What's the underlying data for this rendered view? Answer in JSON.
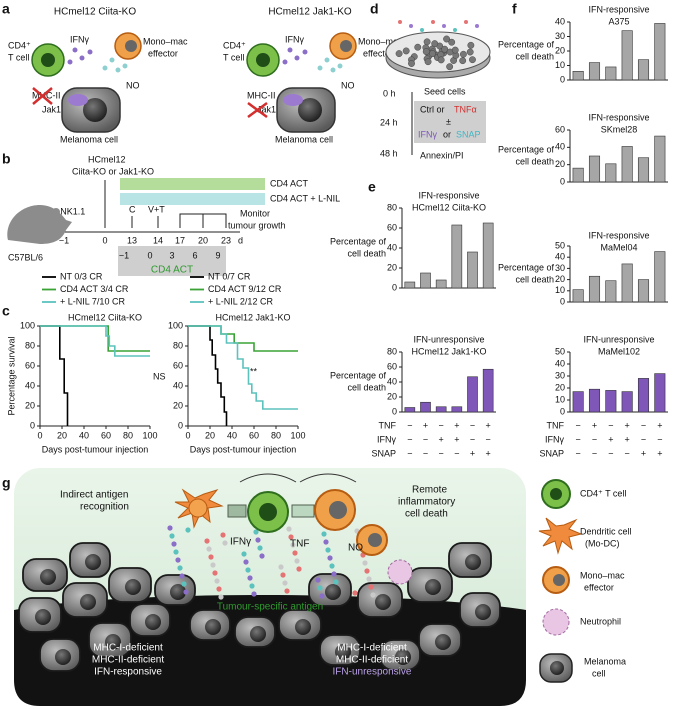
{
  "panel_labels": [
    "a",
    "b",
    "c",
    "d",
    "e",
    "f",
    "g"
  ],
  "panel_a": {
    "left_title": "HCmel12 Ciita-KO",
    "right_title": "HCmel12 Jak1-KO",
    "t_cell": [
      "CD4⁺",
      "T cell"
    ],
    "ifng": "IFNγ",
    "effector": [
      "Mono–mac",
      "effector"
    ],
    "no": "NO",
    "mhc": "MHC-II",
    "jak1": "Jak1",
    "melanoma": "Melanoma cell"
  },
  "panel_b": {
    "line": "HCmel12",
    "cell_lines": "Ciita-KO or Jak1-KO",
    "depletion": "α-NK1.1",
    "mouse": "C57BL/6",
    "c": "C",
    "vt": "V+T",
    "arm1": "CD4 ACT",
    "arm2": "CD4 ACT + L-NIL",
    "monitor": [
      "Monitor",
      "tumour growth"
    ],
    "days": [
      "−1",
      0,
      13,
      14,
      17,
      20,
      23
    ],
    "day_unit": "d",
    "act_days": [
      "−1",
      0,
      3,
      6,
      9
    ],
    "act_label": "CD4 ACT"
  },
  "panel_d": {
    "seed": "Seed cells",
    "ctrl": "Ctrl or",
    "tnf": "TNFα",
    "pm": "±",
    "ifng": "IFNγ",
    "or": "or",
    "snap": "SNAP",
    "readout": "Annexin/PI",
    "times": [
      "0 h",
      "24 h",
      "48 h"
    ]
  },
  "conditions": [
    {
      "name": "TNF",
      "signs": [
        "−",
        "+",
        "−",
        "+",
        "−",
        "+"
      ]
    },
    {
      "name": "IFNγ",
      "signs": [
        "−",
        "−",
        "+",
        "+",
        "−",
        "−"
      ]
    },
    {
      "name": "SNAP",
      "signs": [
        "−",
        "−",
        "−",
        "−",
        "+",
        "+"
      ]
    }
  ],
  "chart_data": [
    {
      "type": "bar",
      "title": [
        "IFN-responsive",
        "HCmel12 Ciita-KO"
      ],
      "ylabel": [
        "Percentage of",
        "cell death"
      ],
      "values": [
        6,
        15,
        8,
        63,
        36,
        65
      ],
      "color": "#a6a6a6",
      "ylim": [
        0,
        80
      ],
      "yticks": [
        0,
        20,
        40,
        60,
        80
      ]
    },
    {
      "type": "bar",
      "title": [
        "IFN-unresponsive",
        "HCmel12 Jak1-KO"
      ],
      "ylabel": [
        "Percentage of",
        "cell death"
      ],
      "values": [
        6,
        13,
        7,
        7,
        47,
        57
      ],
      "color": "#7e57b8",
      "ylim": [
        0,
        80
      ],
      "yticks": [
        0,
        20,
        40,
        60,
        80
      ]
    },
    {
      "type": "bar",
      "title": [
        "IFN-responsive",
        "A375"
      ],
      "ylabel": [
        "Percentage of",
        "cell death"
      ],
      "values": [
        6,
        12,
        9,
        34,
        14,
        39
      ],
      "color": "#a6a6a6",
      "ylim": [
        0,
        40
      ],
      "yticks": [
        0,
        10,
        20,
        30,
        40
      ]
    },
    {
      "type": "bar",
      "title": [
        "IFN-responsive",
        "SKmel28"
      ],
      "ylabel": [
        "Percentage of",
        "cell death"
      ],
      "values": [
        16,
        30,
        21,
        41,
        28,
        53
      ],
      "color": "#a6a6a6",
      "ylim": [
        0,
        60
      ],
      "yticks": [
        0,
        20,
        40,
        60
      ]
    },
    {
      "type": "bar",
      "title": [
        "IFN-responsive",
        "MaMel04"
      ],
      "ylabel": [
        "Percentage of",
        "cell death"
      ],
      "values": [
        11,
        23,
        19,
        34,
        20,
        45
      ],
      "color": "#a6a6a6",
      "ylim": [
        0,
        50
      ],
      "yticks": [
        0,
        10,
        20,
        30,
        40,
        50
      ]
    },
    {
      "type": "bar",
      "title": [
        "IFN-unresponsive",
        "MaMel102"
      ],
      "ylabel": [],
      "values": [
        17,
        19,
        18,
        17,
        28,
        32
      ],
      "color": "#7e57b8",
      "ylim": [
        0,
        50
      ],
      "yticks": [
        0,
        10,
        20,
        30,
        40,
        50
      ]
    },
    {
      "type": "line",
      "step": true,
      "title": "HCmel12 Ciita-KO",
      "ylabel": "Percentage survival",
      "xlabel": "Days post-tumour injection",
      "annotation": "NS",
      "xlim": [
        0,
        100
      ],
      "xticks": [
        0,
        20,
        40,
        60,
        80,
        100
      ],
      "ylim": [
        0,
        100
      ],
      "yticks": [
        0,
        20,
        40,
        60,
        80,
        100
      ],
      "series": [
        {
          "name": "NT 0/3 CR",
          "color": "#000000",
          "x": [
            0,
            18,
            22,
            25
          ],
          "values": [
            100,
            67,
            33,
            0
          ]
        },
        {
          "name": "CD4 ACT 3/4 CR",
          "color": "#3aa335",
          "x": [
            0,
            62,
            100
          ],
          "values": [
            100,
            75,
            75
          ]
        },
        {
          "name": "+ L-NIL 7/10 CR",
          "color": "#5cc2bd",
          "x": [
            0,
            60,
            63,
            68,
            100
          ],
          "values": [
            100,
            90,
            80,
            70,
            70
          ]
        }
      ]
    },
    {
      "type": "line",
      "step": true,
      "title": "HCmel12 Jak1-KO",
      "xlabel": "Days post-tumour injection",
      "annotation": "**",
      "xlim": [
        0,
        100
      ],
      "xticks": [
        0,
        20,
        40,
        60,
        80,
        100
      ],
      "ylim": [
        0,
        100
      ],
      "yticks": [
        0,
        20,
        40,
        60,
        80,
        100
      ],
      "series": [
        {
          "name": "NT 0/7 CR",
          "color": "#000000",
          "x": [
            0,
            20,
            22,
            25,
            27,
            30,
            33,
            35
          ],
          "values": [
            100,
            86,
            71,
            57,
            43,
            29,
            14,
            0
          ]
        },
        {
          "name": "CD4 ACT 9/12 CR",
          "color": "#3aa335",
          "x": [
            0,
            30,
            42,
            60,
            100
          ],
          "values": [
            100,
            92,
            83,
            75,
            75
          ]
        },
        {
          "name": "+ L-NIL 2/12 CR",
          "color": "#5cc2bd",
          "x": [
            0,
            30,
            35,
            45,
            50,
            55,
            58,
            62,
            68,
            100
          ],
          "values": [
            100,
            92,
            83,
            67,
            58,
            42,
            33,
            25,
            17,
            17
          ]
        }
      ]
    }
  ],
  "panel_g": {
    "indirect": [
      "Indirect antigen",
      "recognition"
    ],
    "ifng": "IFNγ",
    "tnf": "TNF",
    "no": "NO",
    "remote": [
      "Remote",
      "inflammatory",
      "cell death"
    ],
    "antigen": "Tumour-specific antigen",
    "left_caption": [
      "MHC-I-deficient",
      "MHC-II-deficient",
      "IFN-responsive"
    ],
    "right_caption": [
      "MHC-I-deficient",
      "MHC-II-deficient",
      "IFN-unresponsive"
    ],
    "legend": [
      [
        "CD4⁺ T cell"
      ],
      [
        "Dendritic cell",
        "(Mo-DC)"
      ],
      [
        "Mono–mac",
        "effector"
      ],
      [
        "Neutrophil"
      ],
      [
        "Melanoma",
        "cell"
      ]
    ]
  }
}
